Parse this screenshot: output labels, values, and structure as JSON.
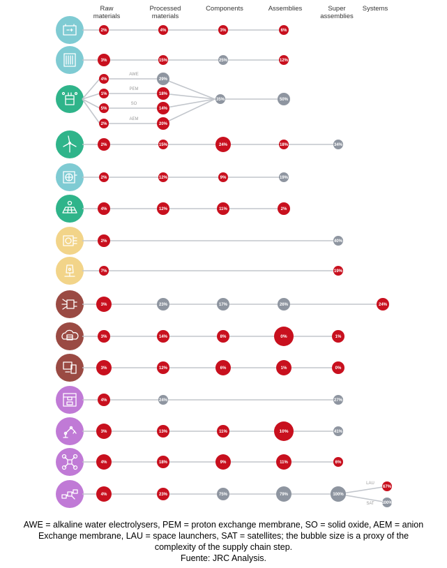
{
  "chart_data": {
    "type": "bubble",
    "column_headers": [
      "Raw materials",
      "Processed materials",
      "Components",
      "Assemblies",
      "Super assemblies",
      "Systems"
    ],
    "colors": {
      "red": "#c8101e",
      "grey": "#8e95a0",
      "connector": "#c2c6cc",
      "teal": "#7fcbd3",
      "green": "#2fb48a",
      "yellow": "#f2d489",
      "brown": "#9a4a43",
      "purple": "#c07ad6"
    },
    "rows": [
      {
        "icon": "battery-icon",
        "icon_color": "teal",
        "nodes": [
          {
            "col": 0,
            "label": "2%",
            "color": "red",
            "size": 1
          },
          {
            "col": 1,
            "label": "4%",
            "color": "red",
            "size": 1
          },
          {
            "col": 2,
            "label": "3%",
            "color": "red",
            "size": 1
          },
          {
            "col": 3,
            "label": "6%",
            "color": "red",
            "size": 1
          }
        ]
      },
      {
        "icon": "fuel-cell-icon",
        "icon_color": "teal",
        "nodes": [
          {
            "col": 0,
            "label": "3%",
            "color": "red",
            "size": 2
          },
          {
            "col": 1,
            "label": "15%",
            "color": "red",
            "size": 1
          },
          {
            "col": 2,
            "label": "25%",
            "color": "grey",
            "size": 1
          },
          {
            "col": 3,
            "label": "12%",
            "color": "red",
            "size": 1
          }
        ]
      },
      {
        "icon": "electrolyser-icon",
        "icon_color": "green",
        "type": "electrolyser",
        "branches": [
          {
            "name": "AWE",
            "raw": "4%",
            "raw_color": "red",
            "proc": "29%",
            "proc_color": "grey"
          },
          {
            "name": "PEM",
            "raw": "1%",
            "raw_color": "red",
            "proc": "18%",
            "proc_color": "red"
          },
          {
            "name": "SO",
            "raw": "5%",
            "raw_color": "red",
            "proc": "14%",
            "proc_color": "red"
          },
          {
            "name": "AEM",
            "raw": "2%",
            "raw_color": "red",
            "proc": "20%",
            "proc_color": "red"
          }
        ],
        "component": "35%",
        "assembly": "50%"
      },
      {
        "icon": "wind-turbine-icon",
        "icon_color": "green",
        "nodes": [
          {
            "col": 0,
            "label": "2%",
            "color": "red",
            "size": 2
          },
          {
            "col": 1,
            "label": "15%",
            "color": "red",
            "size": 1
          },
          {
            "col": 2,
            "label": "24%",
            "color": "red",
            "size": 3
          },
          {
            "col": 3,
            "label": "18%",
            "color": "red",
            "size": 1
          },
          {
            "col": 4,
            "label": "34%",
            "color": "grey",
            "size": 1
          }
        ]
      },
      {
        "icon": "heat-pump-icon",
        "icon_color": "teal",
        "nodes": [
          {
            "col": 0,
            "label": "2%",
            "color": "red",
            "size": 1
          },
          {
            "col": 1,
            "label": "12%",
            "color": "red",
            "size": 1
          },
          {
            "col": 2,
            "label": "9%",
            "color": "red",
            "size": 1
          },
          {
            "col": 3,
            "label": "19%",
            "color": "grey",
            "size": 1
          }
        ]
      },
      {
        "icon": "solar-pv-icon",
        "icon_color": "green",
        "nodes": [
          {
            "col": 0,
            "label": "4%",
            "color": "red",
            "size": 2
          },
          {
            "col": 1,
            "label": "12%",
            "color": "red",
            "size": 2
          },
          {
            "col": 2,
            "label": "11%",
            "color": "red",
            "size": 2
          },
          {
            "col": 3,
            "label": "2%",
            "color": "red",
            "size": 2
          }
        ]
      },
      {
        "icon": "data-transmission-icon",
        "icon_color": "yellow",
        "nodes": [
          {
            "col": 0,
            "label": "2%",
            "color": "red",
            "size": 2
          },
          {
            "col": 4,
            "label": "40%",
            "color": "grey",
            "size": 1
          }
        ]
      },
      {
        "icon": "robot-lamp-icon",
        "icon_color": "yellow",
        "nodes": [
          {
            "col": 0,
            "label": "7%",
            "color": "red",
            "size": 1
          },
          {
            "col": 4,
            "label": "19%",
            "color": "red",
            "size": 1
          }
        ]
      },
      {
        "icon": "chip-icon",
        "icon_color": "brown",
        "nodes": [
          {
            "col": 0,
            "label": "3%",
            "color": "red",
            "size": 3
          },
          {
            "col": 1,
            "label": "23%",
            "color": "grey",
            "size": 2
          },
          {
            "col": 2,
            "label": "17%",
            "color": "grey",
            "size": 2
          },
          {
            "col": 3,
            "label": "26%",
            "color": "grey",
            "size": 2
          },
          {
            "col": 5,
            "label": "24%",
            "color": "red",
            "size": 2
          }
        ]
      },
      {
        "icon": "cloud-server-icon",
        "icon_color": "brown",
        "nodes": [
          {
            "col": 0,
            "label": "3%",
            "color": "red",
            "size": 2
          },
          {
            "col": 1,
            "label": "14%",
            "color": "red",
            "size": 2
          },
          {
            "col": 2,
            "label": "8%",
            "color": "red",
            "size": 2
          },
          {
            "col": 3,
            "label": "0%",
            "color": "red",
            "size": 4
          },
          {
            "col": 4,
            "label": "1%",
            "color": "red",
            "size": 2
          }
        ]
      },
      {
        "icon": "devices-icon",
        "icon_color": "brown",
        "nodes": [
          {
            "col": 0,
            "label": "3%",
            "color": "red",
            "size": 3
          },
          {
            "col": 1,
            "label": "12%",
            "color": "red",
            "size": 2
          },
          {
            "col": 2,
            "label": "6%",
            "color": "red",
            "size": 3
          },
          {
            "col": 3,
            "label": "1%",
            "color": "red",
            "size": 3
          },
          {
            "col": 4,
            "label": "0%",
            "color": "red",
            "size": 2
          }
        ]
      },
      {
        "icon": "3d-printer-icon",
        "icon_color": "purple",
        "nodes": [
          {
            "col": 0,
            "label": "4%",
            "color": "red",
            "size": 2
          },
          {
            "col": 1,
            "label": "24%",
            "color": "grey",
            "size": 1
          },
          {
            "col": 4,
            "label": "27%",
            "color": "grey",
            "size": 1
          }
        ]
      },
      {
        "icon": "robot-arm-icon",
        "icon_color": "purple",
        "nodes": [
          {
            "col": 0,
            "label": "3%",
            "color": "red",
            "size": 3
          },
          {
            "col": 1,
            "label": "13%",
            "color": "red",
            "size": 2
          },
          {
            "col": 2,
            "label": "11%",
            "color": "red",
            "size": 2
          },
          {
            "col": 3,
            "label": "10%",
            "color": "red",
            "size": 4
          },
          {
            "col": 4,
            "label": "41%",
            "color": "grey",
            "size": 1
          }
        ]
      },
      {
        "icon": "drone-icon",
        "icon_color": "purple",
        "nodes": [
          {
            "col": 0,
            "label": "4%",
            "color": "red",
            "size": 3
          },
          {
            "col": 1,
            "label": "18%",
            "color": "red",
            "size": 2
          },
          {
            "col": 2,
            "label": "9%",
            "color": "red",
            "size": 3
          },
          {
            "col": 3,
            "label": "11%",
            "color": "red",
            "size": 3
          },
          {
            "col": 4,
            "label": "6%",
            "color": "red",
            "size": 1
          }
        ]
      },
      {
        "icon": "satellite-icon",
        "icon_color": "purple",
        "type": "space",
        "nodes": [
          {
            "col": 0,
            "label": "4%",
            "color": "red",
            "size": 3
          },
          {
            "col": 1,
            "label": "23%",
            "color": "red",
            "size": 2
          },
          {
            "col": 2,
            "label": "75%",
            "color": "grey",
            "size": 2
          },
          {
            "col": 3,
            "label": "79%",
            "color": "grey",
            "size": 3
          },
          {
            "col": 4,
            "label": "100%",
            "color": "grey",
            "size": 3
          }
        ],
        "split": [
          {
            "name": "LAU",
            "label": "67%",
            "color": "red"
          },
          {
            "name": "SAT",
            "label": "100%",
            "color": "grey"
          }
        ]
      }
    ]
  },
  "caption": {
    "line1": "AWE = alkaline water electrolysers, PEM = proton exchange membrane, SO = solid oxide, AEM = anion",
    "line2": "Exchange membrane, LAU = space launchers, SAT = satellites; the bubble size is a proxy of the",
    "line3": "complexity of the supply chain step.",
    "source": "Fuente: JRC Analysis."
  }
}
